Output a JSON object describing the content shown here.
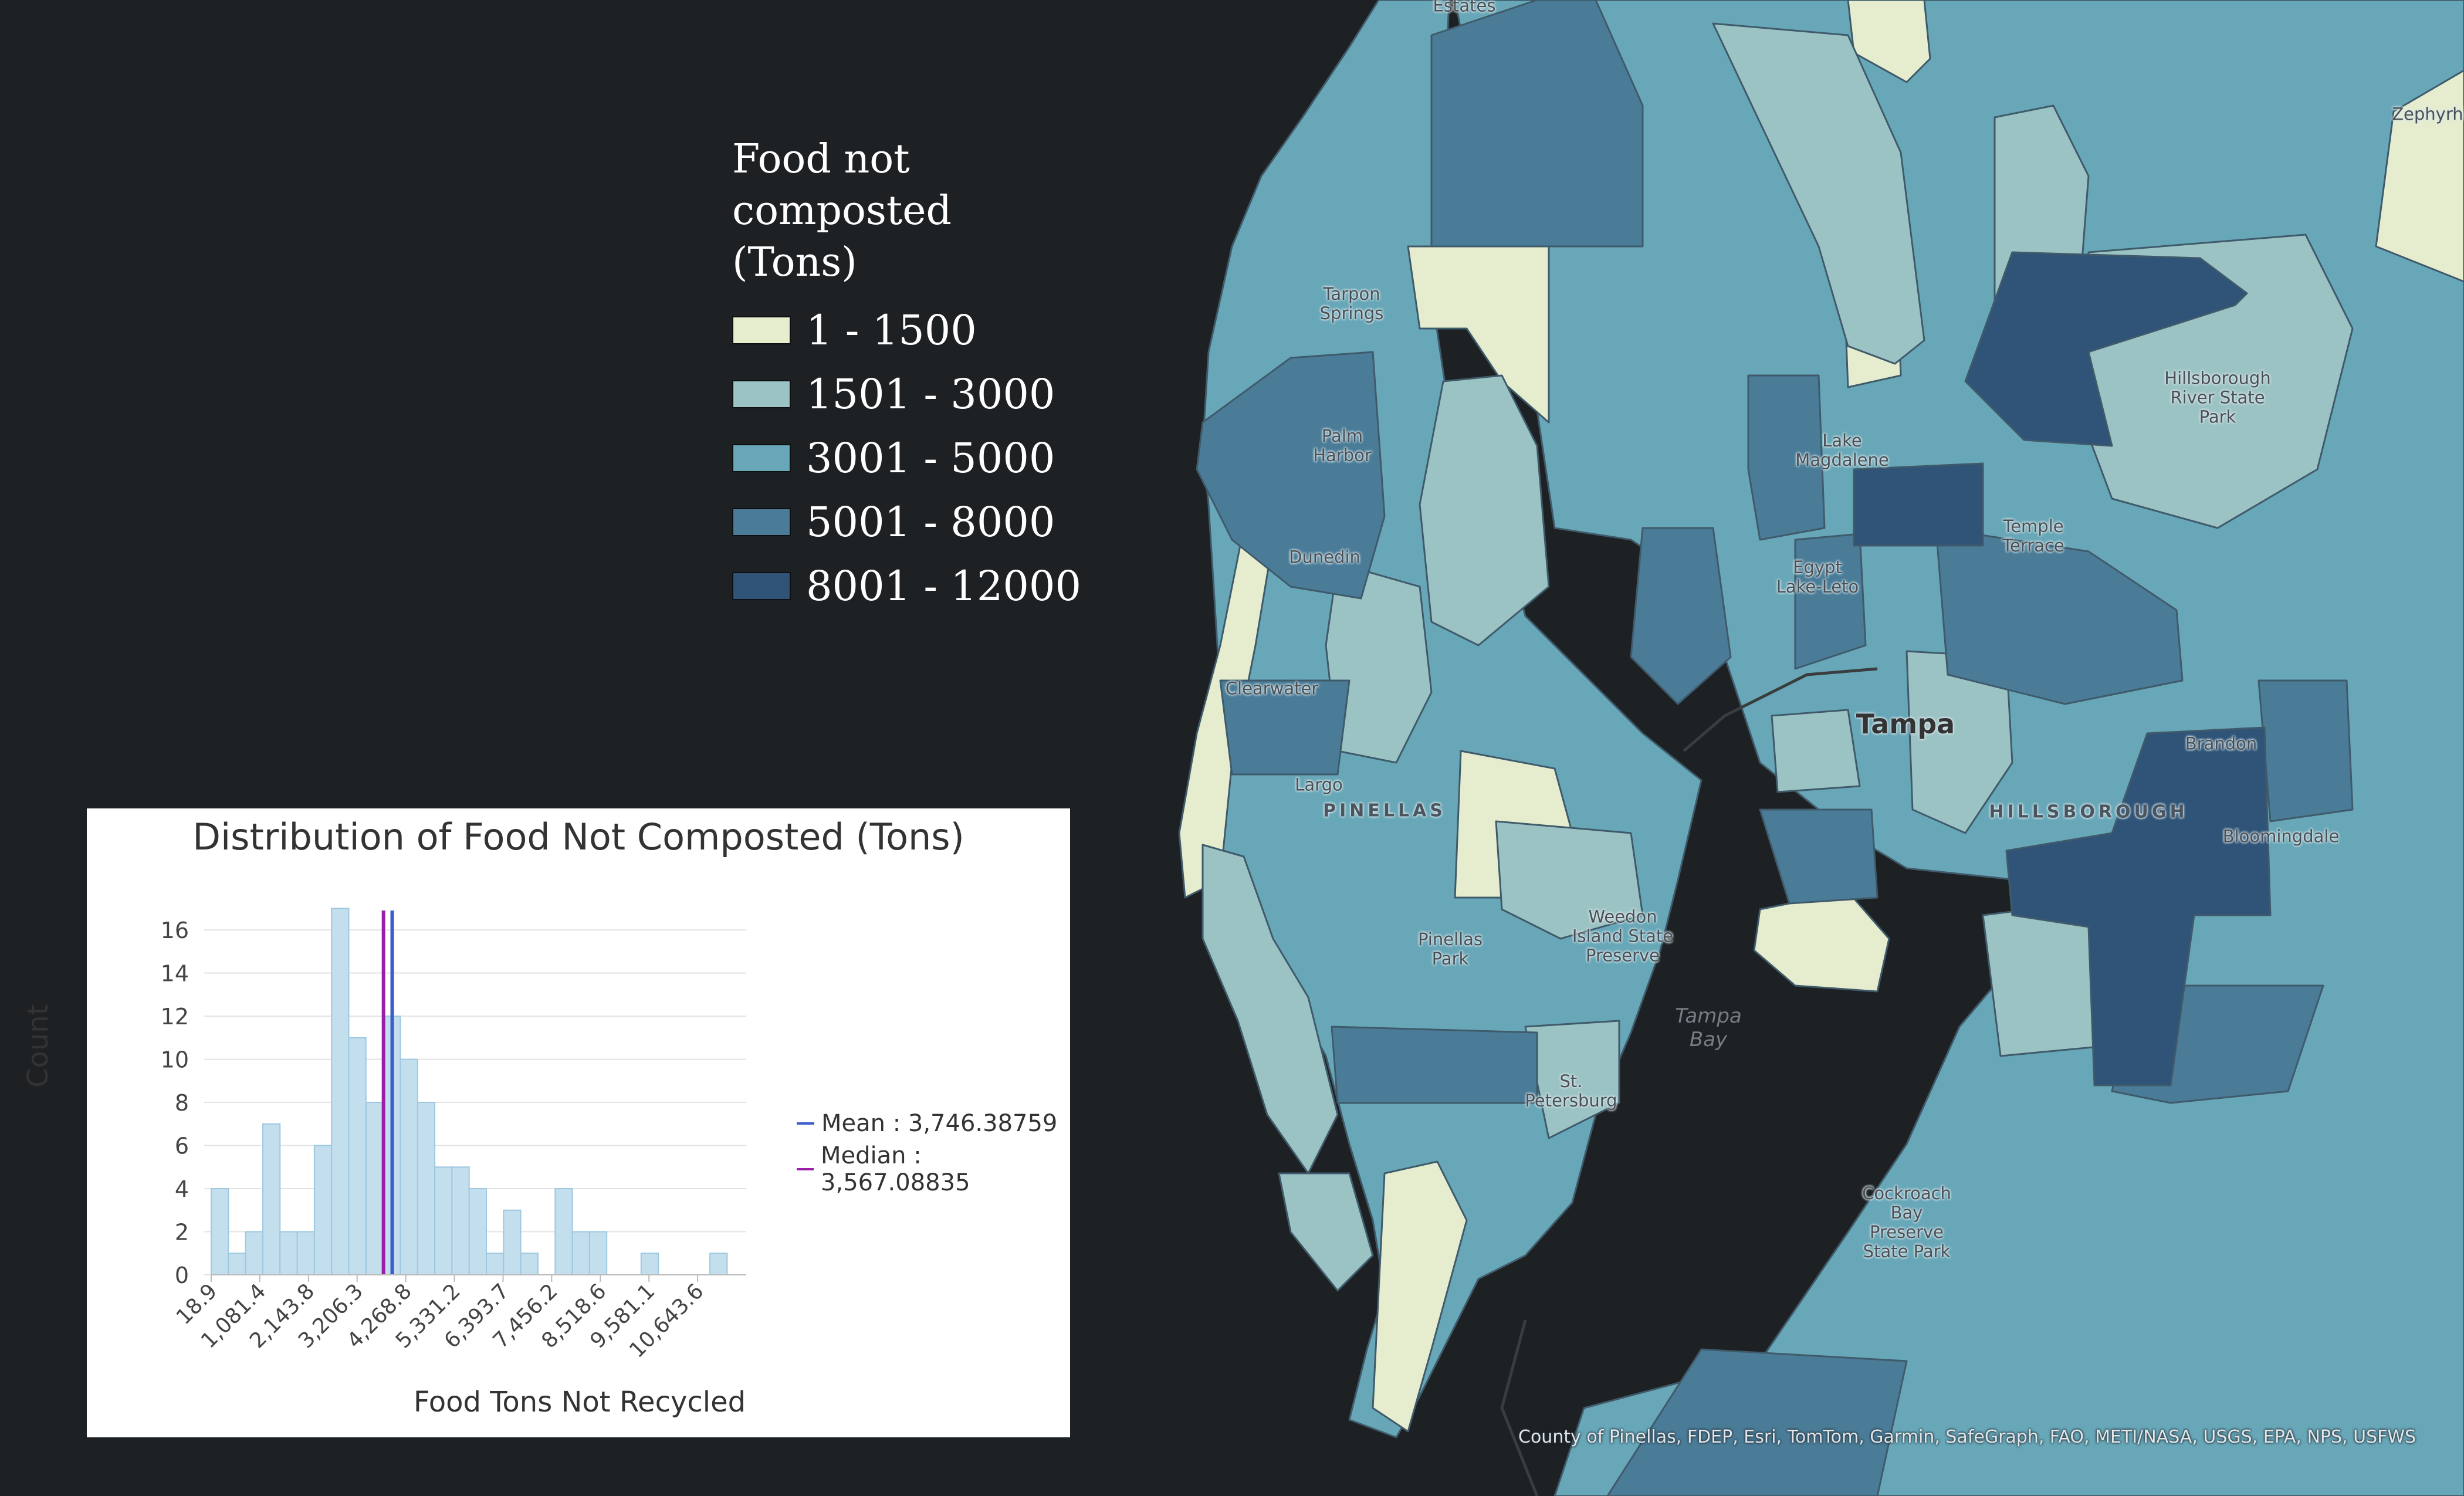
{
  "legend": {
    "title": "Food not composted (Tons)",
    "classes": [
      {
        "label": "1 - 1500",
        "color": "#e6edcf"
      },
      {
        "label": "1501 - 3000",
        "color": "#9cc3c4"
      },
      {
        "label": "3001 - 5000",
        "color": "#68a7b8"
      },
      {
        "label": "5001 - 8000",
        "color": "#4a7c98"
      },
      {
        "label": "8001 - 12000",
        "color": "#2f5478"
      }
    ]
  },
  "map": {
    "water_color": "#1e2124",
    "labels": {
      "estates": "Estates",
      "zephyrhills": "Zephyrhill",
      "tarpon": "Tarpon\nSprings",
      "hillsborough_park": "Hillsborough\nRiver State\nPark",
      "palm_harbor": "Palm\nHarbor",
      "lake_magdalene": "Lake\nMagdalene",
      "temple_terrace": "Temple\nTerrace",
      "dunedin": "Dunedin",
      "egypt_lake": "Egypt\nLake-Leto",
      "clearwater": "Clearwater",
      "tampa": "Tampa",
      "brandon": "Brandon",
      "largo": "Largo",
      "pinellas": "PINELLAS",
      "hillsborough": "HILLSBOROUGH",
      "bloomingdale": "Bloomingdale",
      "weedon": "Weedon\nIsland State\nPreserve",
      "pinellas_park": "Pinellas\nPark",
      "tampa_bay": "Tampa\nBay",
      "st_pete": "St.\nPetersburg",
      "cockroach": "Cockroach\nBay\nPreserve\nState Park"
    },
    "attribution": "County of Pinellas, FDEP, Esri, TomTom, Garmin, SafeGraph, FAO, METI/NASA, USGS, EPA, NPS, USFWS"
  },
  "chart": {
    "mean_label": "Mean : 3,746.38759",
    "median_label": "Median : 3,567.08835",
    "mean_color": "#3a5fcd",
    "median_color": "#9b1fa6",
    "bar_color": "#c3dfee",
    "bar_stroke": "#9ec8df"
  },
  "chart_data": {
    "type": "bar",
    "title": "Distribution of Food Not Composted (Tons)",
    "xlabel": "Food Tons Not Recycled",
    "ylabel": "Count",
    "x_tick_labels": [
      "18.9",
      "1,081.4",
      "2,143.8",
      "3,206.3",
      "4,268.8",
      "5,331.2",
      "6,393.7",
      "7,456.2",
      "8,518.6",
      "9,581.1",
      "10,643.6"
    ],
    "y_ticks": [
      0,
      2,
      4,
      6,
      8,
      10,
      12,
      14,
      16
    ],
    "ylim": [
      0,
      17.5
    ],
    "xlim": [
      18.9,
      11037.4
    ],
    "bin_width": 354.15,
    "counts": [
      4,
      1,
      2,
      7,
      2,
      2,
      6,
      17,
      11,
      8,
      12,
      10,
      8,
      5,
      5,
      4,
      1,
      3,
      1,
      0,
      4,
      2,
      2,
      0,
      0,
      1,
      0,
      0,
      0,
      1
    ],
    "mean": 3746.38759,
    "median": 3567.08835
  }
}
